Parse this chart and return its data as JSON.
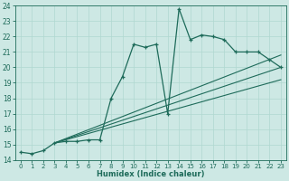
{
  "xlabel": "Humidex (Indice chaleur)",
  "bg_color": "#cde8e4",
  "line_color": "#1e6b5a",
  "grid_color": "#b0d8d0",
  "xlim": [
    -0.5,
    23.5
  ],
  "ylim": [
    14,
    24
  ],
  "xticks": [
    0,
    1,
    2,
    3,
    4,
    5,
    6,
    7,
    8,
    9,
    10,
    11,
    12,
    13,
    14,
    15,
    16,
    17,
    18,
    19,
    20,
    21,
    22,
    23
  ],
  "yticks": [
    14,
    15,
    16,
    17,
    18,
    19,
    20,
    21,
    22,
    23,
    24
  ],
  "curve_x": [
    0,
    1,
    2,
    3,
    4,
    5,
    6,
    7,
    8,
    9,
    10,
    11,
    12,
    13,
    14,
    15,
    16,
    17,
    18,
    19,
    20,
    21,
    22,
    23
  ],
  "curve_y": [
    14.5,
    14.4,
    14.6,
    15.1,
    15.2,
    15.2,
    15.3,
    15.3,
    18.0,
    19.4,
    21.5,
    21.3,
    21.5,
    17.0,
    23.8,
    21.8,
    22.1,
    22.0,
    21.8,
    21.0,
    21.0,
    21.0,
    20.5,
    20.0
  ],
  "line1_x": [
    3,
    23
  ],
  "line1_y": [
    15.1,
    20.0
  ],
  "line2_x": [
    3,
    23
  ],
  "line2_y": [
    15.1,
    19.2
  ],
  "line3_x": [
    3,
    23
  ],
  "line3_y": [
    15.1,
    20.8
  ]
}
